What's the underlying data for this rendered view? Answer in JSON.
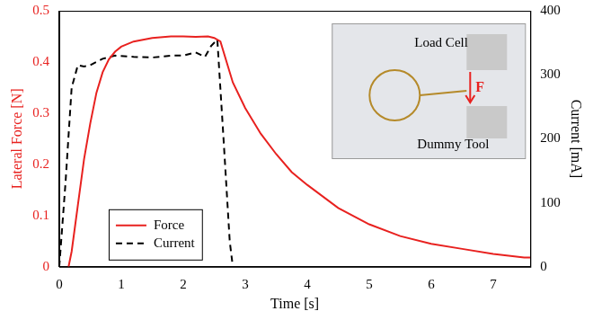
{
  "chart_data": {
    "type": "line",
    "x_label": "Time [s]",
    "y_label": "Lateral Force [N]",
    "y2_label": "Current [mA]",
    "xlim": [
      0,
      7.6
    ],
    "xticks": [
      0,
      1,
      2,
      3,
      4,
      5,
      6,
      7
    ],
    "ylim": [
      0,
      0.5
    ],
    "yticks": [
      0,
      0.1,
      0.2,
      0.3,
      0.4,
      0.5
    ],
    "y2lim": [
      0,
      400
    ],
    "y2ticks": [
      0,
      100,
      200,
      300,
      400
    ],
    "grid": false,
    "legend": "lower left",
    "series": [
      {
        "name": "Force",
        "color": "#e8211f",
        "line_style": "solid",
        "axis": "y",
        "x": [
          0.15,
          0.2,
          0.3,
          0.4,
          0.5,
          0.6,
          0.7,
          0.8,
          0.9,
          1.0,
          1.2,
          1.5,
          1.8,
          2.0,
          2.2,
          2.4,
          2.5,
          2.6,
          2.7,
          2.8,
          3.0,
          3.25,
          3.5,
          3.75,
          4.0,
          4.5,
          5.0,
          5.5,
          6.0,
          6.5,
          7.0,
          7.5,
          7.6
        ],
        "values": [
          0.0,
          0.03,
          0.12,
          0.21,
          0.28,
          0.34,
          0.38,
          0.405,
          0.42,
          0.43,
          0.44,
          0.447,
          0.45,
          0.45,
          0.449,
          0.45,
          0.447,
          0.44,
          0.4,
          0.36,
          0.31,
          0.26,
          0.22,
          0.185,
          0.16,
          0.115,
          0.083,
          0.06,
          0.045,
          0.035,
          0.025,
          0.018,
          0.018
        ]
      },
      {
        "name": "Current",
        "color": "#000000",
        "line_style": "dashed",
        "axis": "y2",
        "x": [
          0.0,
          0.1,
          0.2,
          0.3,
          0.4,
          0.5,
          0.7,
          0.9,
          1.2,
          1.5,
          1.8,
          2.0,
          2.2,
          2.35,
          2.45,
          2.55,
          2.65,
          2.75,
          2.8
        ],
        "values": [
          0,
          130,
          280,
          315,
          313,
          315,
          325,
          330,
          328,
          327,
          330,
          330,
          335,
          328,
          345,
          355,
          200,
          40,
          0
        ]
      }
    ],
    "annotations": [
      {
        "text": "Load Cell",
        "color": "#000000"
      },
      {
        "text": "F",
        "color": "#e8211f"
      },
      {
        "text": "Dummy Tool",
        "color": "#000000"
      }
    ]
  }
}
